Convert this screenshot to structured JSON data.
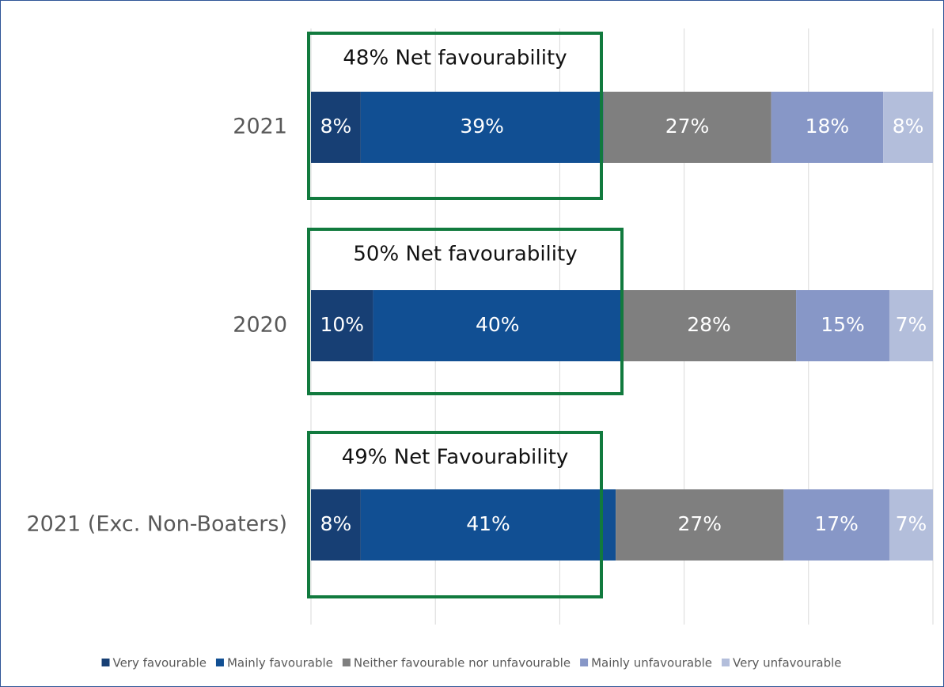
{
  "chart_data": {
    "type": "stacked_barh",
    "categories": [
      "2021",
      "2020",
      "2021 (Exc. Non-Boaters)"
    ],
    "series": [
      {
        "name": "Very favourable",
        "color": "#173f74",
        "values": [
          8,
          10,
          8
        ],
        "value_labels": [
          "8%",
          "10%",
          "8%"
        ]
      },
      {
        "name": "Mainly favourable",
        "color": "#114f93",
        "values": [
          39,
          40,
          41
        ],
        "value_labels": [
          "39%",
          "40%",
          "41%"
        ]
      },
      {
        "name": "Neither favourable nor unfavourable",
        "color": "#7f7f7f",
        "values": [
          27,
          28,
          27
        ],
        "value_labels": [
          "27%",
          "28%",
          "27%"
        ]
      },
      {
        "name": "Mainly unfavourable",
        "color": "#8797c7",
        "values": [
          18,
          15,
          17
        ],
        "value_labels": [
          "18%",
          "15%",
          "17%"
        ]
      },
      {
        "name": "Very unfavourable",
        "color": "#b3bedb",
        "values": [
          8,
          7,
          7
        ],
        "value_labels": [
          "8%",
          "7%",
          "7%"
        ]
      }
    ],
    "xlim": [
      0,
      100
    ],
    "xticks": [
      0,
      20,
      40,
      60,
      80,
      100
    ],
    "grid": true,
    "legend": "bottom",
    "annotations": [
      "48% Net favourability",
      "50% Net favourability",
      "49% Net Favourability"
    ]
  }
}
